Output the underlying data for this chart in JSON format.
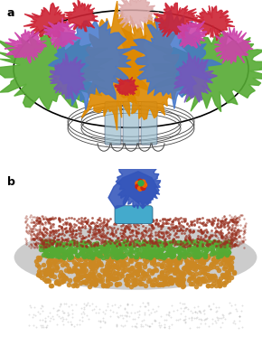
{
  "panel_a_label": "a",
  "panel_b_label": "b",
  "bg_color": "#ffffff",
  "panel_a": {
    "bottom_color": "#99bbcc",
    "wire_color": "#444444",
    "green_color": "#55aa33",
    "blue_color": "#4477cc",
    "orange_color": "#dd8800",
    "purple_color": "#7755bb",
    "red_color": "#cc2233",
    "magenta_color": "#cc44aa",
    "pink_color": "#ddaaaa"
  },
  "panel_b": {
    "protein_blue": "#3355bb",
    "protein_cyan": "#44aacc",
    "lipid_red": "#993322",
    "lipid_green": "#55aa33",
    "lipid_orange": "#cc8822",
    "belt_gray": "#aaaaaa",
    "water_color": "#8899cc"
  }
}
